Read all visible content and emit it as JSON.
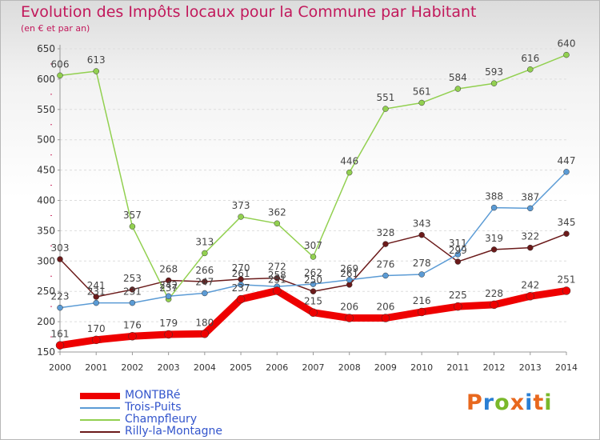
{
  "header": {
    "title": "Evolution des Impôts locaux pour la Commune par Habitant",
    "subtitle": "(en € et par an)"
  },
  "logo": {
    "text": "Proxiti",
    "colors": [
      "#e8681e",
      "#2a7fd4",
      "#7ab82a",
      "#e8681e",
      "#2a7fd4",
      "#e8681e",
      "#7ab82a"
    ]
  },
  "chart_data": {
    "type": "line",
    "x": [
      2000,
      2001,
      2002,
      2003,
      2004,
      2005,
      2006,
      2007,
      2008,
      2009,
      2010,
      2011,
      2012,
      2013,
      2014
    ],
    "ylim": [
      150,
      650
    ],
    "yticks": [
      150,
      200,
      250,
      300,
      350,
      400,
      450,
      500,
      550,
      600,
      650
    ],
    "grid": "horizontal",
    "legend_position": "bottom-left",
    "series": [
      {
        "name": "MONTBRé",
        "color": "#ee0000",
        "values": [
          161,
          170,
          176,
          179,
          180,
          237,
          251,
          215,
          206,
          206,
          216,
          225,
          228,
          242,
          251
        ]
      },
      {
        "name": "Trois-Puits",
        "color": "#5b9bd5",
        "values": [
          223,
          231,
          231,
          242,
          247,
          261,
          258,
          262,
          269,
          276,
          278,
          311,
          388,
          387,
          447
        ]
      },
      {
        "name": "Champfleury",
        "color": "#92d050",
        "values": [
          606,
          613,
          357,
          237,
          313,
          373,
          362,
          307,
          446,
          551,
          561,
          584,
          593,
          616,
          640
        ]
      },
      {
        "name": "Rilly-la-Montagne",
        "color": "#6b1a1a",
        "values": [
          303,
          241,
          253,
          268,
          266,
          270,
          272,
          250,
          261,
          328,
          343,
          299,
          319,
          322,
          345
        ]
      }
    ]
  }
}
